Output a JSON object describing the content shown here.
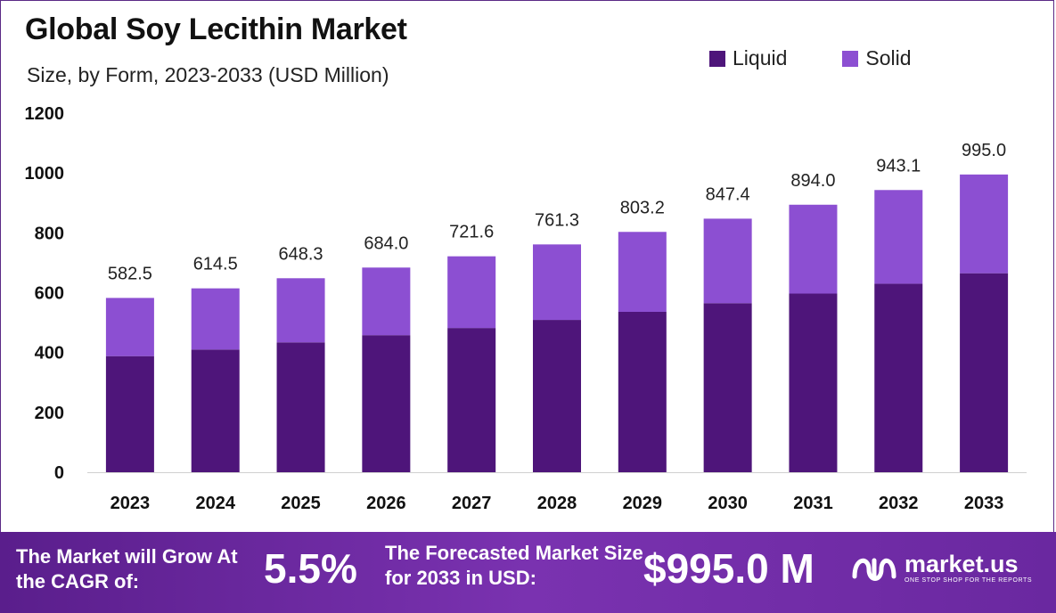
{
  "title": "Global Soy Lecithin Market",
  "subtitle": "Size, by Form, 2023-2033 (USD Million)",
  "colors": {
    "liquid": "#4e157a",
    "solid": "#8c4fd2",
    "footer": "#6a28a0"
  },
  "legend": {
    "liquid": "Liquid",
    "solid": "Solid"
  },
  "chart_data": {
    "type": "bar",
    "stacked": true,
    "categories": [
      "2023",
      "2024",
      "2025",
      "2026",
      "2027",
      "2028",
      "2029",
      "2030",
      "2031",
      "2032",
      "2033"
    ],
    "series": [
      {
        "name": "Liquid",
        "values": [
          388,
          410,
          434,
          458,
          482,
          509,
          536,
          565,
          597,
          630,
          665
        ]
      },
      {
        "name": "Solid",
        "values": [
          194.5,
          204.5,
          214.3,
          226.0,
          239.6,
          252.3,
          267.2,
          282.4,
          297.0,
          313.1,
          330.0
        ]
      }
    ],
    "totals": [
      "582.5",
      "614.5",
      "648.3",
      "684.0",
      "721.6",
      "761.3",
      "803.2",
      "847.4",
      "894.0",
      "943.1",
      "995.0"
    ],
    "ylim": [
      0,
      1200
    ],
    "yticks": [
      0,
      200,
      400,
      600,
      800,
      1000,
      1200
    ],
    "legend_position": "top-right",
    "grid": false
  },
  "footer": {
    "grow_text": "The Market will Grow At the CAGR of:",
    "cagr": "5.5%",
    "forecast_text": "The Forecasted Market Size for 2033 in USD:",
    "market_size": "$995.0 M",
    "brand": "market.us",
    "tagline": "ONE STOP SHOP FOR THE REPORTS"
  }
}
